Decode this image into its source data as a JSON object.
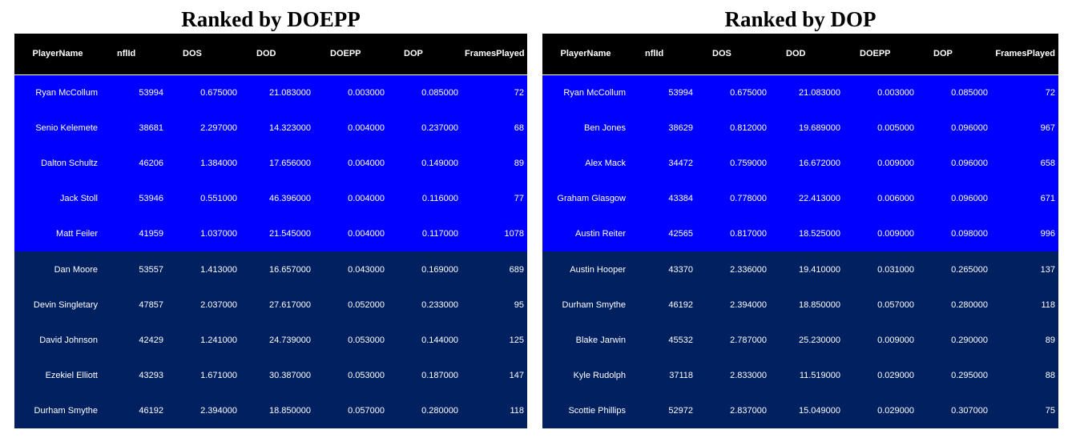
{
  "colors": {
    "header_bg": "#000000",
    "top5_bg": "#0000ff",
    "bottom5_bg": "#002060",
    "text": "#ffffff"
  },
  "chart_data": [
    {
      "type": "table",
      "title": "Ranked by DOEPP",
      "columns": [
        "PlayerName",
        "nflId",
        "DOS",
        "DOD",
        "DOEPP",
        "DOP",
        "FramesPlayed"
      ],
      "rows": [
        [
          "Ryan McCollum",
          "53994",
          "0.675000",
          "21.083000",
          "0.003000",
          "0.085000",
          "72"
        ],
        [
          "Senio Kelemete",
          "38681",
          "2.297000",
          "14.323000",
          "0.004000",
          "0.237000",
          "68"
        ],
        [
          "Dalton Schultz",
          "46206",
          "1.384000",
          "17.656000",
          "0.004000",
          "0.149000",
          "89"
        ],
        [
          "Jack Stoll",
          "53946",
          "0.551000",
          "46.396000",
          "0.004000",
          "0.116000",
          "77"
        ],
        [
          "Matt Feiler",
          "41959",
          "1.037000",
          "21.545000",
          "0.004000",
          "0.117000",
          "1078"
        ],
        [
          "Dan Moore",
          "53557",
          "1.413000",
          "16.657000",
          "0.043000",
          "0.169000",
          "689"
        ],
        [
          "Devin Singletary",
          "47857",
          "2.037000",
          "27.617000",
          "0.052000",
          "0.233000",
          "95"
        ],
        [
          "David Johnson",
          "42429",
          "1.241000",
          "24.739000",
          "0.053000",
          "0.144000",
          "125"
        ],
        [
          "Ezekiel Elliott",
          "43293",
          "1.671000",
          "30.387000",
          "0.053000",
          "0.187000",
          "147"
        ],
        [
          "Durham Smythe",
          "46192",
          "2.394000",
          "18.850000",
          "0.057000",
          "0.280000",
          "118"
        ]
      ]
    },
    {
      "type": "table",
      "title": "Ranked by DOP",
      "columns": [
        "PlayerName",
        "nflId",
        "DOS",
        "DOD",
        "DOEPP",
        "DOP",
        "FramesPlayed"
      ],
      "rows": [
        [
          "Ryan McCollum",
          "53994",
          "0.675000",
          "21.083000",
          "0.003000",
          "0.085000",
          "72"
        ],
        [
          "Ben Jones",
          "38629",
          "0.812000",
          "19.689000",
          "0.005000",
          "0.096000",
          "967"
        ],
        [
          "Alex Mack",
          "34472",
          "0.759000",
          "16.672000",
          "0.009000",
          "0.096000",
          "658"
        ],
        [
          "Graham Glasgow",
          "43384",
          "0.778000",
          "22.413000",
          "0.006000",
          "0.096000",
          "671"
        ],
        [
          "Austin Reiter",
          "42565",
          "0.817000",
          "18.525000",
          "0.009000",
          "0.098000",
          "996"
        ],
        [
          "Austin Hooper",
          "43370",
          "2.336000",
          "19.410000",
          "0.031000",
          "0.265000",
          "137"
        ],
        [
          "Durham Smythe",
          "46192",
          "2.394000",
          "18.850000",
          "0.057000",
          "0.280000",
          "118"
        ],
        [
          "Blake Jarwin",
          "45532",
          "2.787000",
          "25.230000",
          "0.009000",
          "0.290000",
          "89"
        ],
        [
          "Kyle Rudolph",
          "37118",
          "2.833000",
          "11.519000",
          "0.029000",
          "0.295000",
          "88"
        ],
        [
          "Scottie Phillips",
          "52972",
          "2.837000",
          "15.049000",
          "0.029000",
          "0.307000",
          "75"
        ]
      ]
    }
  ]
}
